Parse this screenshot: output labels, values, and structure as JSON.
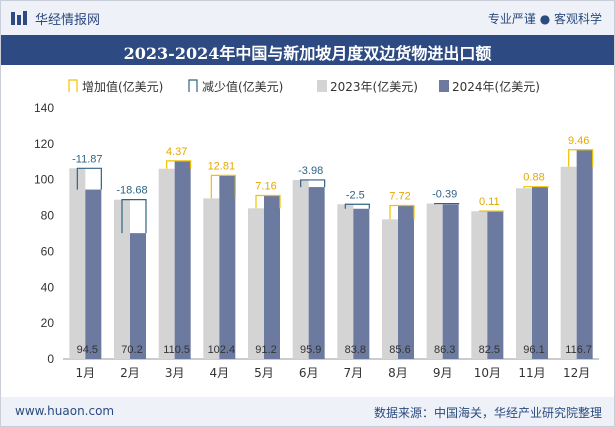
{
  "header": {
    "site_name": "华经情报网",
    "tagline": "专业严谨 ● 客观科学"
  },
  "footer": {
    "url": "www.huaon.com",
    "source": "数据来源：中国海关，华经产业研究院整理"
  },
  "colors": {
    "bar_2023": "#d4d4d4",
    "bar_2024": "#6c7aa0",
    "increase": "#f2c200",
    "decrease": "#2f6385",
    "increase_label": "#e6a700",
    "decrease_label": "#2f6385",
    "header_bg": "#2e4a82"
  },
  "chart_data": {
    "type": "bar",
    "title": "2023-2024年中国与新加坡月度双边货物进出口额",
    "categories": [
      "1月",
      "2月",
      "3月",
      "4月",
      "5月",
      "6月",
      "7月",
      "8月",
      "9月",
      "10月",
      "11月",
      "12月"
    ],
    "series": [
      {
        "name": "2023年(亿美元)",
        "values": [
          106.37,
          88.88,
          106.13,
          89.59,
          84.04,
          99.88,
          86.3,
          77.88,
          86.69,
          82.39,
          95.22,
          107.24
        ]
      },
      {
        "name": "2024年(亿美元)",
        "values": [
          94.5,
          70.2,
          110.5,
          102.4,
          91.2,
          95.9,
          83.8,
          85.6,
          86.3,
          82.5,
          96.1,
          116.7
        ]
      }
    ],
    "change": [
      -11.87,
      -18.68,
      4.37,
      12.81,
      7.16,
      -3.98,
      -2.5,
      7.72,
      -0.39,
      0.11,
      0.88,
      9.46
    ],
    "change_labels": [
      "-11.87",
      "-18.68",
      "4.37",
      "12.81",
      "7.16",
      "-3.98",
      "-2.5",
      "7.72",
      "-0.39",
      "0.11",
      "0.88",
      "9.46"
    ],
    "value_labels": [
      "94.5",
      "70.2",
      "110.5",
      "102.4",
      "91.2",
      "95.9",
      "83.8",
      "85.6",
      "86.3",
      "82.5",
      "96.1",
      "116.7"
    ],
    "legend": [
      "增加值(亿美元)",
      "减少值(亿美元)",
      "2023年(亿美元)",
      "2024年(亿美元)"
    ],
    "legend_position": "top",
    "yticks": [
      "0",
      "20",
      "40",
      "60",
      "80",
      "100",
      "120",
      "140"
    ],
    "ylim": [
      0,
      140
    ],
    "grid": false
  }
}
